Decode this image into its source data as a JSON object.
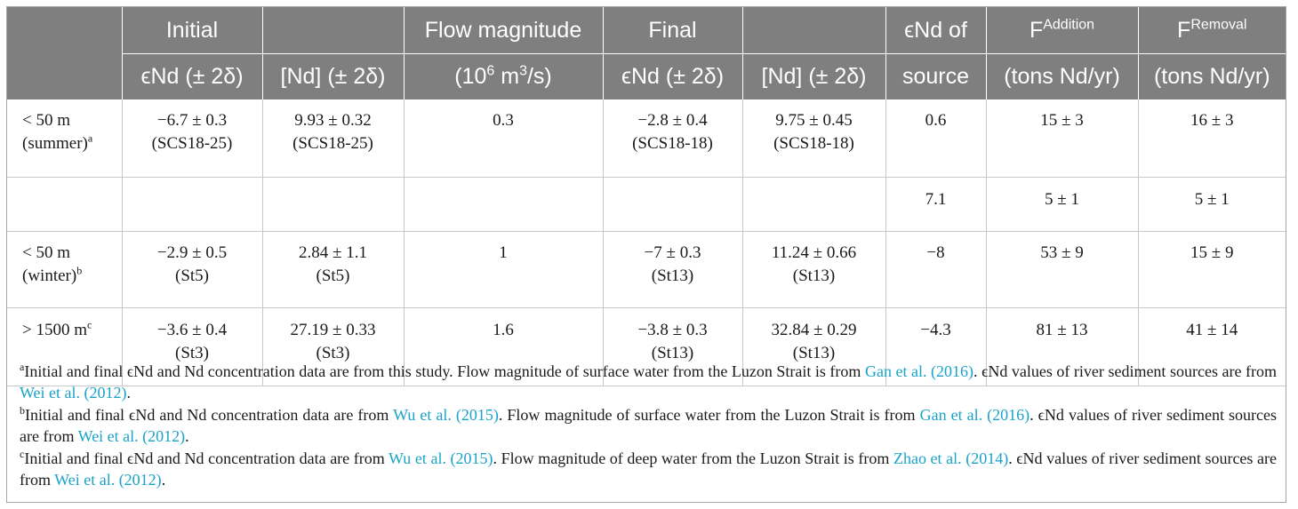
{
  "header": {
    "row1": [
      "Initial",
      "",
      "Flow magnitude",
      "Final",
      "",
      "ϵNd of",
      "F",
      "F"
    ],
    "row1_sup": [
      "",
      "",
      "",
      "",
      "",
      "",
      "Addition",
      "Removal"
    ],
    "row2": [
      "ϵNd (± 2δ)",
      "[Nd] (± 2δ)",
      "(10",
      " m",
      "/s)",
      "ϵNd (± 2δ)",
      "[Nd] (± 2δ)",
      "source",
      "(tons Nd/yr)",
      "(tons Nd/yr)"
    ],
    "flow_sup1": "6",
    "flow_sup2": "3"
  },
  "rows": [
    {
      "label1": "< 50 m",
      "label2": "(summer)",
      "label_sup": "a",
      "init_end": "−6.7 ± 0.3",
      "init_end_st": "(SCS18-25)",
      "init_nd": "9.93 ± 0.32",
      "init_nd_st": "(SCS18-25)",
      "flow": "0.3",
      "fin_end": "−2.8 ± 0.4",
      "fin_end_st": "(SCS18-18)",
      "fin_nd": "9.75 ± 0.45",
      "fin_nd_st": "(SCS18-18)",
      "source": "0.6",
      "add": "15 ± 3",
      "rem": "16 ± 3"
    },
    {
      "source": "7.1",
      "add": "5 ± 1",
      "rem": "5 ± 1"
    },
    {
      "label1": "< 50 m",
      "label2": "(winter)",
      "label_sup": "b",
      "init_end": "−2.9 ± 0.5",
      "init_end_st": "(St5)",
      "init_nd": "2.84 ± 1.1",
      "init_nd_st": "(St5)",
      "flow": "1",
      "fin_end": "−7 ± 0.3",
      "fin_end_st": "(St13)",
      "fin_nd": "11.24 ± 0.66",
      "fin_nd_st": "(St13)",
      "source": "−8",
      "add": "53 ± 9",
      "rem": "15 ± 9"
    },
    {
      "label1": "> 1500 m",
      "label_sup": "c",
      "init_end": "−3.6 ± 0.4",
      "init_end_st": "(St3)",
      "init_nd": "27.19 ± 0.33",
      "init_nd_st": "(St3)",
      "flow": "1.6",
      "fin_end": "−3.8 ± 0.3",
      "fin_end_st": "(St13)",
      "fin_nd": "32.84 ± 0.29",
      "fin_nd_st": "(St13)",
      "source": "−4.3",
      "add": "81 ± 13",
      "rem": "41 ± 14"
    }
  ],
  "notes": [
    {
      "mark": "a",
      "t1": "Initial and final ϵNd and Nd concentration data are from this study. Flow magnitude of surface water from the Luzon Strait is from ",
      "ref1": "Gan et al. (2016)",
      "t2": ". ϵNd values of river sediment sources are from ",
      "ref2": "Wei et al. (2012)",
      "t3": "."
    },
    {
      "mark": "b",
      "t0": "Initial and final ϵNd and Nd concentration data are from ",
      "ref0": "Wu et al. (2015)",
      "t1": ". Flow magnitude of surface water from the Luzon Strait is from ",
      "ref1": "Gan et al. (2016)",
      "t2": ". ϵNd values of river sediment sources are from ",
      "ref2": "Wei et al. (2012)",
      "t3": "."
    },
    {
      "mark": "c",
      "t0": "Initial and final ϵNd and Nd concentration data are from ",
      "ref0": "Wu et al. (2015)",
      "t1": ". Flow magnitude of deep water from the Luzon Strait is from ",
      "ref1": "Zhao et al. (2014)",
      "t2": ". ϵNd values of river sediment sources are from ",
      "ref2": "Wei et al. (2012)",
      "t3": "."
    }
  ]
}
